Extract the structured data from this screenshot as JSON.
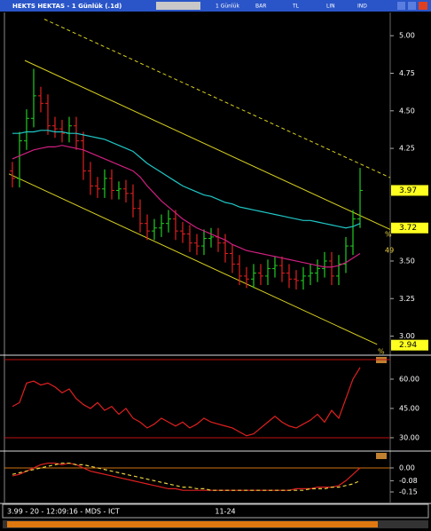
{
  "window": {
    "title": "HEKTS HEKTAS - 1 Günlük (.1d)",
    "toolbar": [
      "1 Günlük",
      "BAR",
      "TL",
      "LIN",
      "IND"
    ],
    "status": "3.99 - 20 - 12:09:16 - MDS - ICT",
    "side_labels": [
      "%",
      "49",
      "%"
    ]
  },
  "chart_data": [
    {
      "type": "ohlc",
      "categories": [
        null,
        null,
        null,
        null,
        null,
        null,
        null,
        null,
        null,
        null,
        null,
        null,
        null,
        null,
        null,
        null,
        null,
        null,
        null,
        null,
        null,
        null,
        null,
        null,
        null,
        null,
        null,
        null,
        null,
        null,
        "11-24",
        null,
        null,
        null,
        null,
        null,
        null,
        null,
        null,
        null,
        null,
        null,
        null,
        null,
        null,
        null,
        null,
        null,
        null,
        null
      ],
      "open": [
        4.1,
        4.05,
        4.3,
        4.45,
        4.6,
        4.55,
        4.4,
        4.38,
        4.35,
        4.4,
        4.3,
        4.1,
        4.0,
        3.98,
        4.05,
        3.97,
        3.98,
        3.95,
        3.85,
        3.75,
        3.7,
        3.72,
        3.75,
        3.78,
        3.7,
        3.68,
        3.62,
        3.6,
        3.65,
        3.66,
        3.62,
        3.55,
        3.48,
        3.4,
        3.38,
        3.42,
        3.4,
        3.45,
        3.47,
        3.42,
        3.38,
        3.37,
        3.4,
        3.42,
        3.45,
        3.5,
        3.4,
        3.48,
        3.6,
        3.78
      ],
      "high": [
        4.16,
        4.36,
        4.51,
        4.78,
        4.66,
        4.61,
        4.46,
        4.44,
        4.46,
        4.46,
        4.36,
        4.16,
        4.06,
        4.11,
        4.11,
        4.03,
        4.04,
        4.01,
        3.91,
        3.81,
        3.78,
        3.81,
        3.84,
        3.84,
        3.76,
        3.74,
        3.68,
        3.71,
        3.72,
        3.72,
        3.68,
        3.61,
        3.54,
        3.46,
        3.48,
        3.48,
        3.51,
        3.53,
        3.53,
        3.48,
        3.44,
        3.46,
        3.48,
        3.51,
        3.56,
        3.56,
        3.54,
        3.66,
        3.84,
        4.12
      ],
      "low": [
        3.99,
        3.99,
        4.24,
        4.39,
        4.49,
        4.34,
        4.32,
        4.29,
        4.29,
        4.24,
        4.04,
        3.94,
        3.92,
        3.92,
        3.91,
        3.91,
        3.89,
        3.79,
        3.69,
        3.64,
        3.64,
        3.66,
        3.69,
        3.64,
        3.62,
        3.56,
        3.54,
        3.54,
        3.59,
        3.56,
        3.49,
        3.42,
        3.34,
        3.32,
        3.32,
        3.34,
        3.34,
        3.39,
        3.36,
        3.32,
        3.31,
        3.31,
        3.34,
        3.36,
        3.39,
        3.34,
        3.34,
        3.42,
        3.54,
        3.72
      ],
      "close": [
        4.05,
        4.3,
        4.45,
        4.6,
        4.55,
        4.4,
        4.38,
        4.35,
        4.4,
        4.3,
        4.1,
        4.0,
        3.98,
        4.05,
        3.97,
        3.98,
        3.95,
        3.85,
        3.75,
        3.7,
        3.72,
        3.75,
        3.78,
        3.7,
        3.68,
        3.62,
        3.6,
        3.65,
        3.66,
        3.62,
        3.55,
        3.48,
        3.4,
        3.38,
        3.42,
        3.4,
        3.45,
        3.47,
        3.42,
        3.38,
        3.37,
        3.4,
        3.42,
        3.45,
        3.5,
        3.4,
        3.48,
        3.6,
        3.78,
        3.97
      ],
      "up_color": "#22cc22",
      "down_color": "#e02020",
      "series": [
        {
          "color": "#20c8c8",
          "values": [
            4.35,
            4.35,
            4.36,
            4.36,
            4.37,
            4.37,
            4.36,
            4.36,
            4.35,
            4.35,
            4.34,
            4.33,
            4.32,
            4.31,
            4.29,
            4.27,
            4.25,
            4.23,
            4.19,
            4.15,
            4.12,
            4.09,
            4.06,
            4.03,
            4.0,
            3.98,
            3.96,
            3.94,
            3.93,
            3.91,
            3.89,
            3.88,
            3.86,
            3.85,
            3.84,
            3.83,
            3.82,
            3.81,
            3.8,
            3.79,
            3.78,
            3.77,
            3.77,
            3.76,
            3.75,
            3.74,
            3.73,
            3.72,
            3.73,
            3.75
          ]
        },
        {
          "color": "#d02080",
          "values": [
            4.18,
            4.2,
            4.22,
            4.24,
            4.25,
            4.26,
            4.26,
            4.27,
            4.26,
            4.25,
            4.24,
            4.22,
            4.2,
            4.18,
            4.16,
            4.14,
            4.12,
            4.1,
            4.06,
            4.0,
            3.95,
            3.9,
            3.86,
            3.82,
            3.78,
            3.75,
            3.72,
            3.7,
            3.68,
            3.66,
            3.64,
            3.61,
            3.59,
            3.57,
            3.56,
            3.55,
            3.54,
            3.53,
            3.52,
            3.51,
            3.5,
            3.49,
            3.48,
            3.47,
            3.46,
            3.46,
            3.47,
            3.49,
            3.52,
            3.55
          ]
        }
      ],
      "trendlines": [
        {
          "x": [
            1.75,
            53.25
          ],
          "y": [
            4.835,
            3.71
          ],
          "color": "#d8d020",
          "dash": false
        },
        {
          "x": [
            -0.5,
            51.4
          ],
          "y": [
            4.08,
            2.945
          ],
          "color": "#d8d020",
          "dash": false
        },
        {
          "x": [
            4.5,
            53.25
          ],
          "y": [
            5.11,
            4.055
          ],
          "color": "#d8d020",
          "dash": true
        }
      ],
      "annotations": [
        {
          "value": 3.97,
          "label": "3.97"
        },
        {
          "value": 3.72,
          "label": "3.72"
        },
        {
          "value": 2.94,
          "label": "2.94"
        }
      ],
      "ylim": [
        2.885,
        5.155
      ],
      "yticks": [
        {
          "value": 5,
          "label": "5.00"
        },
        {
          "value": 4.75,
          "label": "4.75"
        },
        {
          "value": 4.5,
          "label": "4.50"
        },
        {
          "value": 4.25,
          "label": "4.25"
        },
        {
          "value": 3.5,
          "label": "3.50"
        },
        {
          "value": 3.25,
          "label": "3.25"
        },
        {
          "value": 3,
          "label": "3.00"
        }
      ]
    },
    {
      "type": "line",
      "series": [
        {
          "color": "#e02020",
          "dash": false,
          "values": [
            46,
            48,
            58,
            59,
            57,
            58,
            56,
            53,
            55,
            50,
            47,
            45,
            48,
            44,
            46,
            42,
            45,
            40,
            38,
            35,
            37,
            40,
            38,
            36,
            38,
            35,
            37,
            40,
            38,
            37,
            36,
            35,
            33,
            31,
            32,
            35,
            38,
            41,
            38,
            36,
            35,
            37,
            39,
            42,
            38,
            44,
            40,
            50,
            60,
            66
          ]
        }
      ],
      "hlines": [
        {
          "value": 70,
          "color": "#c01010"
        },
        {
          "value": 30,
          "color": "#c01010"
        }
      ],
      "ylim": [
        26.8,
        70.9
      ],
      "yticks": [
        {
          "value": 60,
          "label": "60.00"
        },
        {
          "value": 45,
          "label": "45.00"
        },
        {
          "value": 30,
          "label": "30.00"
        }
      ]
    },
    {
      "type": "line",
      "series": [
        {
          "color": "#e02020",
          "dash": false,
          "values": [
            -0.05,
            -0.04,
            -0.02,
            0.0,
            0.02,
            0.03,
            0.03,
            0.02,
            0.03,
            0.02,
            0.0,
            -0.02,
            -0.03,
            -0.04,
            -0.05,
            -0.06,
            -0.07,
            -0.08,
            -0.09,
            -0.1,
            -0.11,
            -0.12,
            -0.13,
            -0.13,
            -0.14,
            -0.14,
            -0.14,
            -0.14,
            -0.14,
            -0.14,
            -0.14,
            -0.14,
            -0.14,
            -0.14,
            -0.14,
            -0.14,
            -0.14,
            -0.14,
            -0.14,
            -0.14,
            -0.13,
            -0.13,
            -0.13,
            -0.12,
            -0.12,
            -0.12,
            -0.11,
            -0.08,
            -0.04,
            0.0
          ]
        },
        {
          "color": "#e8d040",
          "dash": true,
          "values": [
            -0.04,
            -0.03,
            -0.02,
            -0.01,
            0.0,
            0.01,
            0.02,
            0.03,
            0.03,
            0.02,
            0.02,
            0.01,
            0.0,
            -0.01,
            -0.02,
            -0.03,
            -0.04,
            -0.05,
            -0.06,
            -0.07,
            -0.08,
            -0.09,
            -0.1,
            -0.11,
            -0.12,
            -0.12,
            -0.13,
            -0.13,
            -0.14,
            -0.14,
            -0.14,
            -0.14,
            -0.14,
            -0.14,
            -0.14,
            -0.14,
            -0.14,
            -0.14,
            -0.14,
            -0.14,
            -0.14,
            -0.14,
            -0.13,
            -0.13,
            -0.13,
            -0.12,
            -0.12,
            -0.11,
            -0.1,
            -0.08
          ]
        }
      ],
      "hlines": [
        {
          "value": 0,
          "color": "#d07010"
        }
      ],
      "ylim": [
        -0.211,
        0.083
      ],
      "yticks": [
        {
          "value": 0,
          "label": "0.00"
        },
        {
          "value": -0.08,
          "label": "-0.08"
        },
        {
          "value": -0.15,
          "label": "-0.15"
        }
      ]
    }
  ]
}
